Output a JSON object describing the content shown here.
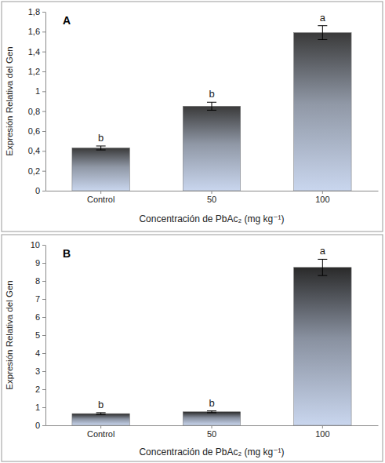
{
  "chart_data": [
    {
      "type": "bar",
      "title": "A",
      "x_label": "Concentración de PbAc₂ (mg kg⁻¹)",
      "y_label": "Expresión Relativa del Gen",
      "categories": [
        "Control",
        "50",
        "100"
      ],
      "values": [
        0.43,
        0.85,
        1.59
      ],
      "errors": [
        0.02,
        0.04,
        0.07
      ],
      "letters": [
        "b",
        "b",
        "a"
      ],
      "color": "#3a3a3a",
      "ylim": [
        0,
        1.8
      ],
      "yticks": [
        0,
        {
          "value": 0.2,
          "label": "0,2"
        },
        {
          "value": 0.4,
          "label": "0,4"
        },
        {
          "value": 0.6,
          "label": "0,6"
        },
        {
          "value": 0.8,
          "label": "0,8"
        },
        1,
        {
          "value": 1.2,
          "label": "1,2"
        },
        {
          "value": 1.4,
          "label": "1,4"
        },
        {
          "value": 1.6,
          "label": "1,6"
        },
        {
          "value": 1.8,
          "label": "1,8"
        }
      ],
      "grid": false
    },
    {
      "type": "bar",
      "title": "B",
      "x_label": "Concentración de PbAc₂ (mg kg⁻¹)",
      "y_label": "Expresión Relativa del Gen",
      "categories": [
        "Control",
        "50",
        "100"
      ],
      "values": [
        0.65,
        0.75,
        8.75
      ],
      "errors": [
        0.05,
        0.05,
        0.45
      ],
      "letters": [
        "b",
        "b",
        "a"
      ],
      "color": "#2a2a2a",
      "ylim": [
        0,
        10
      ],
      "yticks": [
        0,
        1,
        2,
        3,
        4,
        5,
        6,
        7,
        8,
        9,
        10
      ],
      "grid": false
    }
  ]
}
